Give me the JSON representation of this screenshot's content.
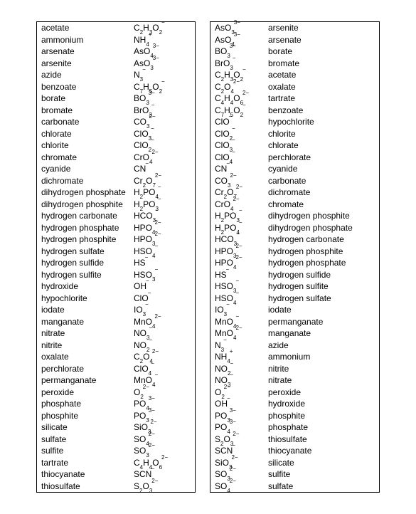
{
  "tables": [
    {
      "col_a_class": "col-a",
      "col_b_class": "col-b",
      "rows": [
        {
          "a": "acetate",
          "b": "C<sub>2</sub>H<sub>3</sub>O<sub>2</sub><sup>−</sup>"
        },
        {
          "a": "ammonium",
          "b": "NH<sub>4</sub><sup>+</sup>"
        },
        {
          "a": "arsenate",
          "b": "AsO<sub>4</sub><sup>3−</sup>"
        },
        {
          "a": "arsenite",
          "b": "AsO<sub>3</sub><sup>3−</sup>"
        },
        {
          "a": "azide",
          "b": "N<sub>3</sub><sup>−</sup>"
        },
        {
          "a": "benzoate",
          "b": "C<sub>7</sub>H<sub>5</sub>O<sub>2</sub><sup>−</sup>"
        },
        {
          "a": "borate",
          "b": "BO<sub>3</sub><sup>3−</sup>"
        },
        {
          "a": "bromate",
          "b": "BrO<sub>3</sub><sup>−</sup>"
        },
        {
          "a": "carbonate",
          "b": "CO<sub>3</sub><sup>2−</sup>"
        },
        {
          "a": "chlorate",
          "b": "ClO<sub>3</sub><sup>−</sup>"
        },
        {
          "a": "chlorite",
          "b": "ClO<sub>2</sub><sup>−</sup>"
        },
        {
          "a": "chromate",
          "b": "CrO<sub>4</sub><sup>2−</sup>"
        },
        {
          "a": "cyanide",
          "b": "CN<sup>−</sup>"
        },
        {
          "a": "dichromate",
          "b": "Cr<sub>2</sub>O<sub>7</sub><sup>2−</sup>"
        },
        {
          "a": "dihydrogen phosphate",
          "b": "H<sub>2</sub>PO<sub>4</sub><sup>−</sup>"
        },
        {
          "a": "dihydrogen phosphite",
          "b": "H<sub>2</sub>PO<sub>3</sub><sup>−</sup>"
        },
        {
          "a": "hydrogen carbonate",
          "b": "HCO<sub>3</sub><sup>−</sup>"
        },
        {
          "a": "hydrogen phosphate",
          "b": "HPO<sub>4</sub><sup>2−</sup>"
        },
        {
          "a": "hydrogen phosphite",
          "b": "HPO<sub>3</sub><sup>2−</sup>"
        },
        {
          "a": "hydrogen sulfate",
          "b": "HSO<sub>4</sub><sup>−</sup>"
        },
        {
          "a": "hydrogen sulfide",
          "b": "HS<sup>−</sup>"
        },
        {
          "a": "hydrogen sulfite",
          "b": "HSO<sub>3</sub><sup>−</sup>"
        },
        {
          "a": "hydroxide",
          "b": "OH<sup>−</sup>"
        },
        {
          "a": "hypochlorite",
          "b": "ClO<sup>−</sup>"
        },
        {
          "a": "iodate",
          "b": "IO<sub>3</sub><sup>−</sup>"
        },
        {
          "a": "manganate",
          "b": "MnO<sub>4</sub><sup>2−</sup>"
        },
        {
          "a": "nitrate",
          "b": "NO<sub>3</sub><sup>−</sup>"
        },
        {
          "a": "nitrite",
          "b": "NO<sub>2</sub><sup>−</sup>"
        },
        {
          "a": "oxalate",
          "b": "C<sub>2</sub>O<sub>4</sub><sup>2−</sup>"
        },
        {
          "a": "perchlorate",
          "b": "ClO<sub>4</sub><sup>−</sup>"
        },
        {
          "a": "permanganate",
          "b": "MnO<sub>4</sub><sup>−</sup>"
        },
        {
          "a": "peroxide",
          "b": "O<sub>2</sub><sup>2−</sup>"
        },
        {
          "a": "phosphate",
          "b": "PO<sub>4</sub><sup>3−</sup>"
        },
        {
          "a": "phosphite",
          "b": "PO<sub>3</sub><sup>3−</sup>"
        },
        {
          "a": "silicate",
          "b": "SiO<sub>3</sub><sup>2−</sup>"
        },
        {
          "a": "sulfate",
          "b": "SO<sub>4</sub><sup>2−</sup>"
        },
        {
          "a": "sulfite",
          "b": "SO<sub>3</sub><sup>2−</sup>"
        },
        {
          "a": "tartrate",
          "b": "C<sub>4</sub>H<sub>4</sub>O<sub>6</sub><sup>2−</sup>"
        },
        {
          "a": "thiocyanate",
          "b": "SCN<sup>−</sup>"
        },
        {
          "a": "thiosulfate",
          "b": "S<sub>2</sub>O<sub>3</sub><sup>2−</sup>"
        }
      ]
    },
    {
      "col_a_class": "col-a",
      "col_b_class": "col-b",
      "rows": [
        {
          "a": "AsO<sub>3</sub><sup>3−</sup>",
          "b": "arsenite"
        },
        {
          "a": "AsO<sub>4</sub><sup>3−</sup>",
          "b": "arsenate"
        },
        {
          "a": "BO<sub>3</sub><sup>3−</sup>",
          "b": "borate"
        },
        {
          "a": "BrO<sub>3</sub><sup>−</sup>",
          "b": "bromate"
        },
        {
          "a": "C<sub>2</sub>H<sub>3</sub>O<sub>2</sub><sup>−</sup>",
          "b": "acetate"
        },
        {
          "a": "C<sub>2</sub>O<sub>4</sub><sup>2−</sup>",
          "b": "oxalate"
        },
        {
          "a": "C<sub>4</sub>H<sub>4</sub>O<sub>6</sub><sup>2−</sup>",
          "b": "tartrate"
        },
        {
          "a": "C<sub>7</sub>H<sub>5</sub>O<sub>2</sub><sup>−</sup>",
          "b": "benzoate"
        },
        {
          "a": "ClO<sup>−</sup>",
          "b": "hypochlorite"
        },
        {
          "a": "ClO<sub>2</sub><sup>−</sup>",
          "b": "chlorite"
        },
        {
          "a": "ClO<sub>3</sub><sup>−</sup>",
          "b": "chlorate"
        },
        {
          "a": "ClO<sub>4</sub><sup>−</sup>",
          "b": "perchlorate"
        },
        {
          "a": "CN<sup>−</sup>",
          "b": "cyanide"
        },
        {
          "a": "CO<sub>3</sub><sup>2−</sup>",
          "b": "carbonate"
        },
        {
          "a": "Cr<sub>2</sub>O<sub>7</sub><sup>2−</sup>",
          "b": "dichromate"
        },
        {
          "a": "CrO<sub>4</sub><sup>2−</sup>",
          "b": "chromate"
        },
        {
          "a": "H<sub>2</sub>PO<sub>3</sub><sup>−</sup>",
          "b": "dihydrogen phosphite"
        },
        {
          "a": "H<sub>2</sub>PO<sub>4</sub><sup>−</sup>",
          "b": "dihydrogen phosphate"
        },
        {
          "a": "HCO<sub>3</sub><sup>−</sup>",
          "b": "hydrogen carbonate"
        },
        {
          "a": "HPO<sub>3</sub><sup>2−</sup>",
          "b": "hydrogen phosphite"
        },
        {
          "a": "HPO<sub>4</sub><sup>2−</sup>",
          "b": "hydrogen phosphate"
        },
        {
          "a": "HS<sup>−</sup>",
          "b": "hydrogen sulfide"
        },
        {
          "a": "HSO<sub>3</sub><sup>−</sup>",
          "b": "hydrogen sulfite"
        },
        {
          "a": "HSO<sub>4</sub><sup>−</sup>",
          "b": "hydrogen sulfate"
        },
        {
          "a": "IO<sub>3</sub><sup>−</sup>",
          "b": "iodate"
        },
        {
          "a": "MnO<sub>4</sub><sup>−</sup>",
          "b": "permanganate"
        },
        {
          "a": "MnO<sub>4</sub><sup>2−</sup>",
          "b": "manganate"
        },
        {
          "a": "N<sub>3</sub><sup>−</sup>",
          "b": "azide"
        },
        {
          "a": "NH<sub>4</sub><sup>+</sup>",
          "b": "ammonium"
        },
        {
          "a": "NO<sub>2</sub><sup>−</sup>",
          "b": "nitrite"
        },
        {
          "a": "NO<sub>3</sub><sup>−</sup>",
          "b": "nitrate"
        },
        {
          "a": "O<sub>2</sub><sup>2−</sup>",
          "b": "peroxide"
        },
        {
          "a": "OH<sup>−</sup>",
          "b": "hydroxide"
        },
        {
          "a": "PO<sub>3</sub><sup>3−</sup>",
          "b": "phosphite"
        },
        {
          "a": "PO<sub>4</sub><sup>3−</sup>",
          "b": "phosphate"
        },
        {
          "a": "S<sub>2</sub>O<sub>3</sub><sup>2−</sup>",
          "b": "thiosulfate"
        },
        {
          "a": "SCN<sup>−</sup>",
          "b": "thiocyanate"
        },
        {
          "a": "SiO<sub>3</sub><sup>2−</sup>",
          "b": "silicate"
        },
        {
          "a": "SO<sub>3</sub><sup>2−</sup>",
          "b": "sulfite"
        },
        {
          "a": "SO<sub>4</sub><sup>2−</sup>",
          "b": "sulfate"
        }
      ]
    }
  ]
}
